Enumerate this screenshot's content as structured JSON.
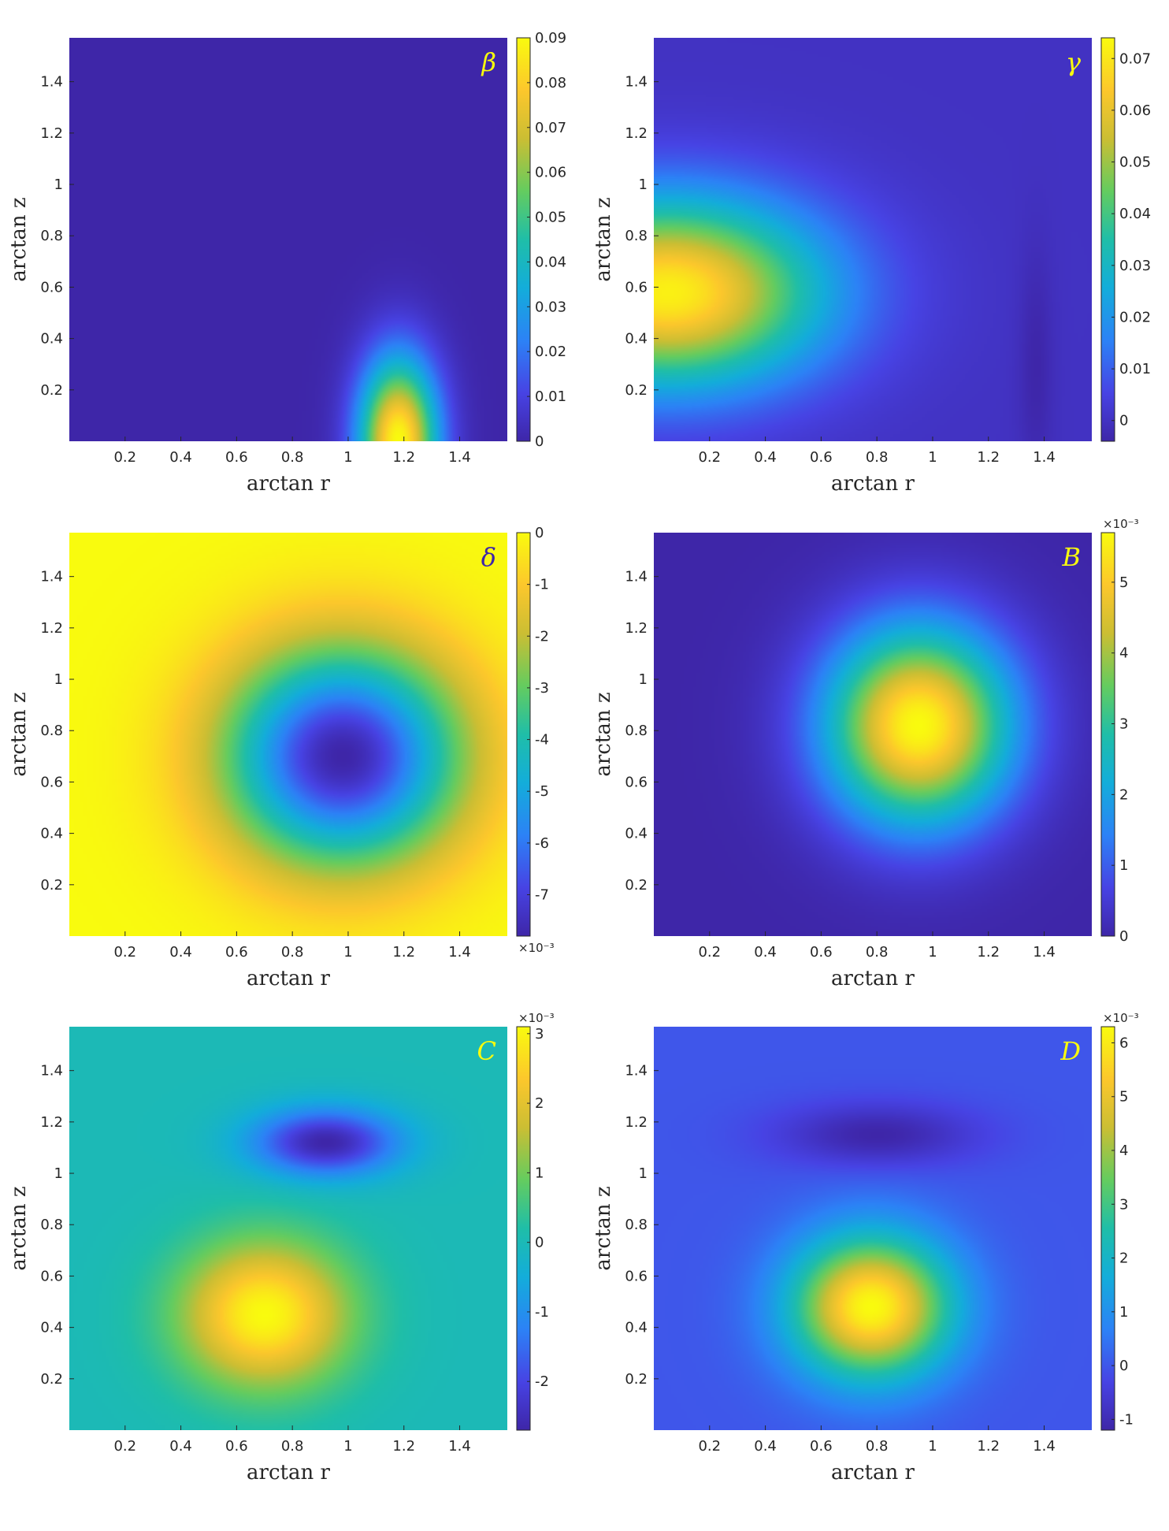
{
  "chart_data": [
    {
      "type": "heatmap",
      "panel_label": "β",
      "panel_label_color": "#f9fb0e",
      "xlabel": "arctan r",
      "ylabel": "arctan z",
      "xlim": [
        0,
        1.5708
      ],
      "ylim": [
        0,
        1.5708
      ],
      "xticks": [
        0.2,
        0.4,
        0.6,
        0.8,
        1,
        1.2,
        1.4
      ],
      "xtick_labels": [
        "0.2",
        "0.4",
        "0.6",
        "0.8",
        "1",
        "1.2",
        "1.4"
      ],
      "yticks": [
        0.2,
        0.4,
        0.6,
        0.8,
        1,
        1.2,
        1.4
      ],
      "ytick_labels": [
        "0.2",
        "0.4",
        "0.6",
        "0.8",
        "1",
        "1.2",
        "1.4"
      ],
      "colorbar": {
        "min": 0,
        "max": 0.09,
        "multiplier": "",
        "ticks": [
          0,
          0.01,
          0.02,
          0.03,
          0.04,
          0.05,
          0.06,
          0.07,
          0.08,
          0.09
        ],
        "tick_labels": [
          "0",
          "0.01",
          "0.02",
          "0.03",
          "0.04",
          "0.05",
          "0.06",
          "0.07",
          "0.08",
          "0.09"
        ]
      },
      "field_features": [
        {
          "kind": "peak",
          "x": 1.18,
          "y": 0.0,
          "value": 0.09,
          "sx": 0.14,
          "sy": 0.32
        }
      ],
      "baseline": 0.0
    },
    {
      "type": "heatmap",
      "panel_label": "γ",
      "panel_label_color": "#f9fb0e",
      "xlabel": "arctan r",
      "ylabel": "arctan z",
      "xlim": [
        0,
        1.5708
      ],
      "ylim": [
        0,
        1.5708
      ],
      "xticks": [
        0.2,
        0.4,
        0.6,
        0.8,
        1,
        1.2,
        1.4
      ],
      "xtick_labels": [
        "0.2",
        "0.4",
        "0.6",
        "0.8",
        "1",
        "1.2",
        "1.4"
      ],
      "yticks": [
        0.2,
        0.4,
        0.6,
        0.8,
        1,
        1.2,
        1.4
      ],
      "ytick_labels": [
        "0.2",
        "0.4",
        "0.6",
        "0.8",
        "1",
        "1.2",
        "1.4"
      ],
      "colorbar": {
        "min": -0.004,
        "max": 0.074,
        "multiplier": "",
        "ticks": [
          0,
          0.01,
          0.02,
          0.03,
          0.04,
          0.05,
          0.06,
          0.07
        ],
        "tick_labels": [
          "0",
          "0.01",
          "0.02",
          "0.03",
          "0.04",
          "0.05",
          "0.06",
          "0.07"
        ]
      },
      "field_features": [
        {
          "kind": "peak",
          "x": 0.05,
          "y": 0.58,
          "value": 0.072,
          "sx": 0.55,
          "sy": 0.36
        },
        {
          "kind": "trough",
          "x": 1.37,
          "y": 0.3,
          "value": -0.004,
          "sx": 0.06,
          "sy": 0.45
        }
      ],
      "baseline": 0.0
    },
    {
      "type": "heatmap",
      "panel_label": "δ",
      "panel_label_color": "#3e26a8",
      "xlabel": "arctan r",
      "ylabel": "arctan z",
      "xlim": [
        0,
        1.5708
      ],
      "ylim": [
        0,
        1.5708
      ],
      "xticks": [
        0.2,
        0.4,
        0.6,
        0.8,
        1,
        1.2,
        1.4
      ],
      "xtick_labels": [
        "0.2",
        "0.4",
        "0.6",
        "0.8",
        "1",
        "1.2",
        "1.4"
      ],
      "yticks": [
        0.2,
        0.4,
        0.6,
        0.8,
        1,
        1.2,
        1.4
      ],
      "ytick_labels": [
        "0.2",
        "0.4",
        "0.6",
        "0.8",
        "1",
        "1.2",
        "1.4"
      ],
      "colorbar": {
        "min": -0.0078,
        "max": 0,
        "multiplier": "×10⁻³",
        "multiplier_position": "bottom",
        "ticks": [
          -0.007,
          -0.006,
          -0.005,
          -0.004,
          -0.003,
          -0.002,
          -0.001,
          0
        ],
        "tick_labels": [
          "-7",
          "-6",
          "-5",
          "-4",
          "-3",
          "-2",
          "-1",
          "0"
        ]
      },
      "field_features": [
        {
          "kind": "trough",
          "x": 0.98,
          "y": 0.7,
          "value": -0.0078,
          "sx": 0.42,
          "sy": 0.42
        }
      ],
      "baseline": 0.0
    },
    {
      "type": "heatmap",
      "panel_label": "B",
      "panel_label_color": "#f9fb0e",
      "xlabel": "arctan r",
      "ylabel": "arctan z",
      "xlim": [
        0,
        1.5708
      ],
      "ylim": [
        0,
        1.5708
      ],
      "xticks": [
        0.2,
        0.4,
        0.6,
        0.8,
        1,
        1.2,
        1.4
      ],
      "xtick_labels": [
        "0.2",
        "0.4",
        "0.6",
        "0.8",
        "1",
        "1.2",
        "1.4"
      ],
      "yticks": [
        0.2,
        0.4,
        0.6,
        0.8,
        1,
        1.2,
        1.4
      ],
      "ytick_labels": [
        "0.2",
        "0.4",
        "0.6",
        "0.8",
        "1",
        "1.2",
        "1.4"
      ],
      "colorbar": {
        "min": 0,
        "max": 0.0057,
        "multiplier": "×10⁻³",
        "multiplier_position": "top",
        "ticks": [
          0,
          0.001,
          0.002,
          0.003,
          0.004,
          0.005
        ],
        "tick_labels": [
          "0",
          "1",
          "2",
          "3",
          "4",
          "5"
        ]
      },
      "field_features": [
        {
          "kind": "peak",
          "x": 0.95,
          "y": 0.82,
          "value": 0.0057,
          "sx": 0.33,
          "sy": 0.38
        }
      ],
      "baseline": 0.0
    },
    {
      "type": "heatmap",
      "panel_label": "C",
      "panel_label_color": "#f9fb0e",
      "xlabel": "arctan r",
      "ylabel": "arctan z",
      "xlim": [
        0,
        1.5708
      ],
      "ylim": [
        0,
        1.5708
      ],
      "xticks": [
        0.2,
        0.4,
        0.6,
        0.8,
        1,
        1.2,
        1.4
      ],
      "xtick_labels": [
        "0.2",
        "0.4",
        "0.6",
        "0.8",
        "1",
        "1.2",
        "1.4"
      ],
      "yticks": [
        0.2,
        0.4,
        0.6,
        0.8,
        1,
        1.2,
        1.4
      ],
      "ytick_labels": [
        "0.2",
        "0.4",
        "0.6",
        "0.8",
        "1",
        "1.2",
        "1.4"
      ],
      "colorbar": {
        "min": -0.0027,
        "max": 0.0031,
        "multiplier": "×10⁻³",
        "multiplier_position": "top",
        "ticks": [
          -0.002,
          -0.001,
          0,
          0.001,
          0.002,
          0.003
        ],
        "tick_labels": [
          "-2",
          "-1",
          "0",
          "1",
          "2",
          "3"
        ]
      },
      "field_features": [
        {
          "kind": "peak",
          "x": 0.7,
          "y": 0.45,
          "value": 0.0031,
          "sx": 0.3,
          "sy": 0.28
        },
        {
          "kind": "trough",
          "x": 0.92,
          "y": 1.12,
          "value": -0.0027,
          "sx": 0.26,
          "sy": 0.13
        }
      ],
      "baseline": 0.0
    },
    {
      "type": "heatmap",
      "panel_label": "D",
      "panel_label_color": "#f9fb0e",
      "xlabel": "arctan r",
      "ylabel": "arctan z",
      "xlim": [
        0,
        1.5708
      ],
      "ylim": [
        0,
        1.5708
      ],
      "xticks": [
        0.2,
        0.4,
        0.6,
        0.8,
        1,
        1.2,
        1.4
      ],
      "xtick_labels": [
        "0.2",
        "0.4",
        "0.6",
        "0.8",
        "1",
        "1.2",
        "1.4"
      ],
      "yticks": [
        0.2,
        0.4,
        0.6,
        0.8,
        1,
        1.2,
        1.4
      ],
      "ytick_labels": [
        "0.2",
        "0.4",
        "0.6",
        "0.8",
        "1",
        "1.2",
        "1.4"
      ],
      "colorbar": {
        "min": -0.0012,
        "max": 0.0063,
        "multiplier": "×10⁻³",
        "multiplier_position": "top",
        "ticks": [
          -0.001,
          0,
          0.001,
          0.002,
          0.003,
          0.004,
          0.005,
          0.006
        ],
        "tick_labels": [
          "-1",
          "0",
          "1",
          "2",
          "3",
          "4",
          "5",
          "6"
        ]
      },
      "field_features": [
        {
          "kind": "peak",
          "x": 0.78,
          "y": 0.48,
          "value": 0.0063,
          "sx": 0.28,
          "sy": 0.27
        },
        {
          "kind": "trough",
          "x": 0.8,
          "y": 1.15,
          "value": -0.0012,
          "sx": 0.35,
          "sy": 0.12
        }
      ],
      "baseline": 0.0
    }
  ],
  "colormap": "parula"
}
